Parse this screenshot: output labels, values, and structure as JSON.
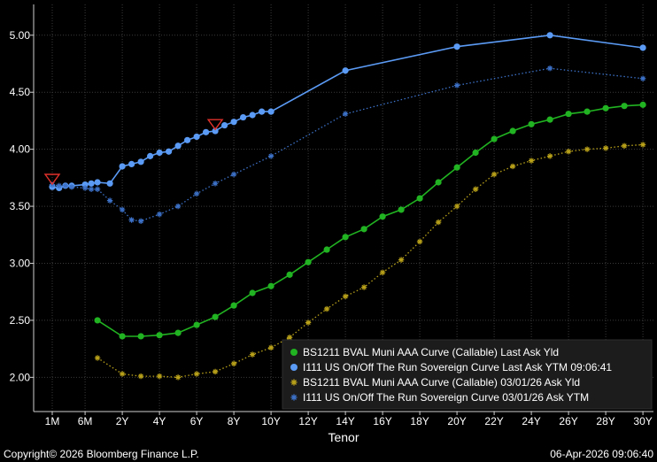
{
  "chart_data": {
    "type": "line",
    "xlabel": "Tenor",
    "ylabel": "",
    "ylim": [
      1.7,
      5.27
    ],
    "yticks": [
      "5.00",
      "4.50",
      "4.00",
      "3.50",
      "3.00",
      "2.50",
      "2.00"
    ],
    "ytick_values": [
      5.0,
      4.5,
      4.0,
      3.5,
      3.0,
      2.5,
      2.0
    ],
    "xticks": [
      "1M",
      "6M",
      "2Y",
      "4Y",
      "6Y",
      "8Y",
      "10Y",
      "12Y",
      "14Y",
      "16Y",
      "18Y",
      "20Y",
      "22Y",
      "24Y",
      "26Y",
      "28Y",
      "30Y"
    ],
    "xtick_values": [
      0.083,
      0.5,
      2,
      4,
      6,
      8,
      10,
      12,
      14,
      16,
      18,
      20,
      22,
      24,
      26,
      28,
      30
    ],
    "grid": true,
    "legend_position": "bottom-right",
    "series": [
      {
        "name": "BS1211 BVAL Muni AAA Curve (Callable) Last Ask Yld",
        "color": "#21b321",
        "marker": "circle",
        "line": "solid",
        "x": [
          1,
          2,
          3,
          4,
          5,
          6,
          7,
          8,
          9,
          10,
          11,
          12,
          13,
          14,
          15,
          16,
          17,
          18,
          19,
          20,
          21,
          22,
          23,
          24,
          25,
          26,
          27,
          28,
          29,
          30
        ],
        "values": [
          2.5,
          2.36,
          2.36,
          2.37,
          2.39,
          2.46,
          2.53,
          2.63,
          2.74,
          2.8,
          2.9,
          3.01,
          3.12,
          3.23,
          3.3,
          3.41,
          3.47,
          3.57,
          3.71,
          3.84,
          3.97,
          4.09,
          4.16,
          4.22,
          4.26,
          4.31,
          4.33,
          4.36,
          4.38,
          4.39
        ]
      },
      {
        "name": "I111 US On/Off The Run Sovereign Curve Last Ask YTM 09:06:41",
        "color": "#5b9bf5",
        "marker": "circle",
        "line": "solid",
        "x": [
          0.083,
          0.25,
          0.5,
          1,
          2,
          3,
          5,
          7,
          10,
          20,
          30
        ],
        "values": [
          3.66,
          3.67,
          3.69,
          3.7,
          3.85,
          3.87,
          3.98,
          4.15,
          4.33,
          4.9,
          4.89
        ],
        "x_dense": [
          0.083,
          0.17,
          0.25,
          0.33,
          0.5,
          0.75,
          1,
          1.5,
          2,
          2.5,
          3,
          3.5,
          4,
          4.5,
          5,
          5.5,
          6,
          6.5,
          7,
          7.5,
          8,
          8.5,
          9,
          9.5,
          10,
          14,
          20,
          25,
          30
        ],
        "values_dense": [
          3.67,
          3.66,
          3.68,
          3.68,
          3.69,
          3.7,
          3.71,
          3.7,
          3.85,
          3.87,
          3.89,
          3.94,
          3.97,
          3.98,
          4.03,
          4.08,
          4.11,
          4.15,
          4.16,
          4.21,
          4.24,
          4.28,
          4.3,
          4.33,
          4.33,
          4.69,
          4.9,
          5.0,
          4.89
        ]
      },
      {
        "name": "BS1211 BVAL Muni AAA Curve (Callable) 03/01/26 Ask Yld",
        "color": "#b9a21a",
        "marker": "star",
        "line": "dotted",
        "x": [
          1,
          2,
          3,
          4,
          5,
          6,
          7,
          8,
          9,
          10,
          11,
          12,
          13,
          14,
          15,
          16,
          17,
          18,
          19,
          20,
          21,
          22,
          23,
          24,
          25,
          26,
          27,
          28,
          29,
          30
        ],
        "values": [
          2.17,
          2.03,
          2.01,
          2.01,
          2.0,
          2.03,
          2.05,
          2.12,
          2.2,
          2.26,
          2.35,
          2.48,
          2.6,
          2.71,
          2.79,
          2.92,
          3.03,
          3.19,
          3.36,
          3.5,
          3.65,
          3.78,
          3.85,
          3.9,
          3.94,
          3.98,
          4.0,
          4.01,
          4.03,
          4.04
        ]
      },
      {
        "name": "I111 US On/Off The Run Sovereign Curve 03/01/26 Ask YTM",
        "color": "#3c71c7",
        "marker": "star",
        "line": "dotted",
        "x": [
          0.083,
          0.25,
          0.5,
          1,
          2,
          3,
          5,
          7,
          10,
          20,
          30
        ],
        "values": [
          3.69,
          3.68,
          3.67,
          3.65,
          3.47,
          3.37,
          3.43,
          3.61,
          3.78,
          4.56,
          4.62
        ],
        "x_dense": [
          0.083,
          0.17,
          0.25,
          0.33,
          0.5,
          0.75,
          1,
          1.5,
          2,
          2.5,
          3,
          4,
          5,
          6,
          7,
          8,
          10,
          14,
          20,
          25,
          30
        ],
        "values_dense": [
          3.69,
          3.68,
          3.68,
          3.67,
          3.66,
          3.65,
          3.65,
          3.55,
          3.47,
          3.38,
          3.37,
          3.43,
          3.5,
          3.61,
          3.7,
          3.78,
          3.94,
          4.31,
          4.56,
          4.71,
          4.62
        ]
      }
    ],
    "markers": [
      {
        "x": 0.083,
        "y": 3.71,
        "color": "#e0312b",
        "shape": "triangle-down"
      },
      {
        "x": 7,
        "y": 4.19,
        "color": "#e0312b",
        "shape": "triangle-down"
      }
    ]
  },
  "footer": {
    "left": "Copyright© 2026 Bloomberg Finance L.P.",
    "right": "06-Apr-2026 09:06:40"
  }
}
